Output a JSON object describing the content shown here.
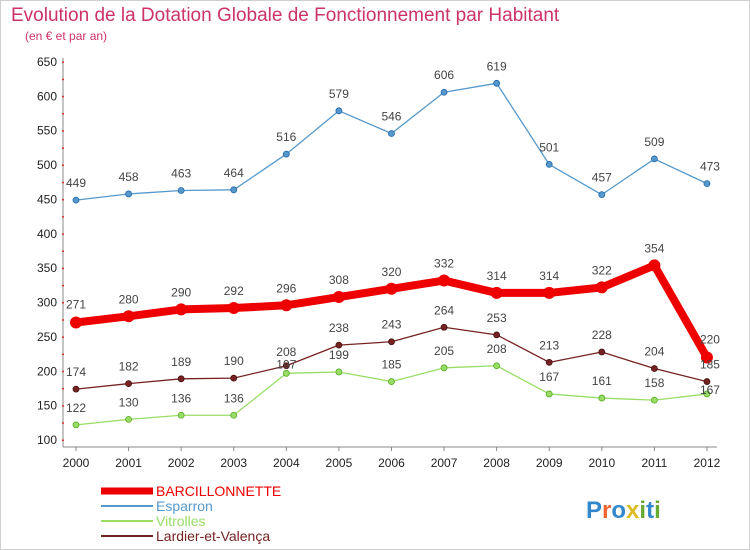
{
  "header": {
    "title": "Evolution de la Dotation Globale de Fonctionnement par Habitant",
    "subtitle": "(en € et par an)"
  },
  "logo": {
    "text": "Proxiti"
  },
  "chart_data": {
    "type": "line",
    "title": "Evolution de la Dotation Globale de Fonctionnement par Habitant",
    "subtitle": "(en € et par an)",
    "xlabel": "",
    "ylabel": "",
    "x": [
      "2000",
      "2001",
      "2002",
      "2003",
      "2004",
      "2005",
      "2006",
      "2007",
      "2008",
      "2009",
      "2010",
      "2011",
      "2012"
    ],
    "ylim": [
      100,
      650
    ],
    "yticks": [
      100,
      150,
      200,
      250,
      300,
      350,
      400,
      450,
      500,
      550,
      600,
      650
    ],
    "grid": false,
    "legend_position": "bottom-left",
    "series": [
      {
        "name": "BARCILLONNETTE",
        "color": "#ee0000",
        "width": 8,
        "values": [
          271,
          280,
          290,
          292,
          296,
          308,
          320,
          332,
          314,
          314,
          322,
          354,
          220
        ]
      },
      {
        "name": "Esparron",
        "color": "#5599cc",
        "width": 1.3,
        "values": [
          449,
          458,
          463,
          464,
          516,
          579,
          546,
          606,
          619,
          501,
          457,
          509,
          473
        ]
      },
      {
        "name": "Vitrolles",
        "color": "#99dd66",
        "width": 1.3,
        "values": [
          122,
          130,
          136,
          136,
          197,
          199,
          185,
          205,
          208,
          167,
          161,
          158,
          167
        ]
      },
      {
        "name": "Lardier-et-Valença",
        "color": "#772222",
        "width": 1.3,
        "values": [
          174,
          182,
          189,
          190,
          208,
          238,
          243,
          264,
          253,
          213,
          228,
          204,
          185
        ]
      }
    ]
  }
}
